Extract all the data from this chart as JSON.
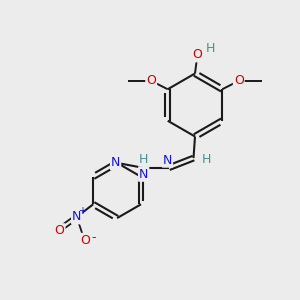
{
  "background_color": "#ececec",
  "bond_color": "#1a1a1a",
  "atom_colors": {
    "O": "#cc0000",
    "N": "#1414cc",
    "H": "#4a9090",
    "C": "#1a1a1a"
  },
  "figure_size": [
    3.0,
    3.0
  ],
  "dpi": 100
}
